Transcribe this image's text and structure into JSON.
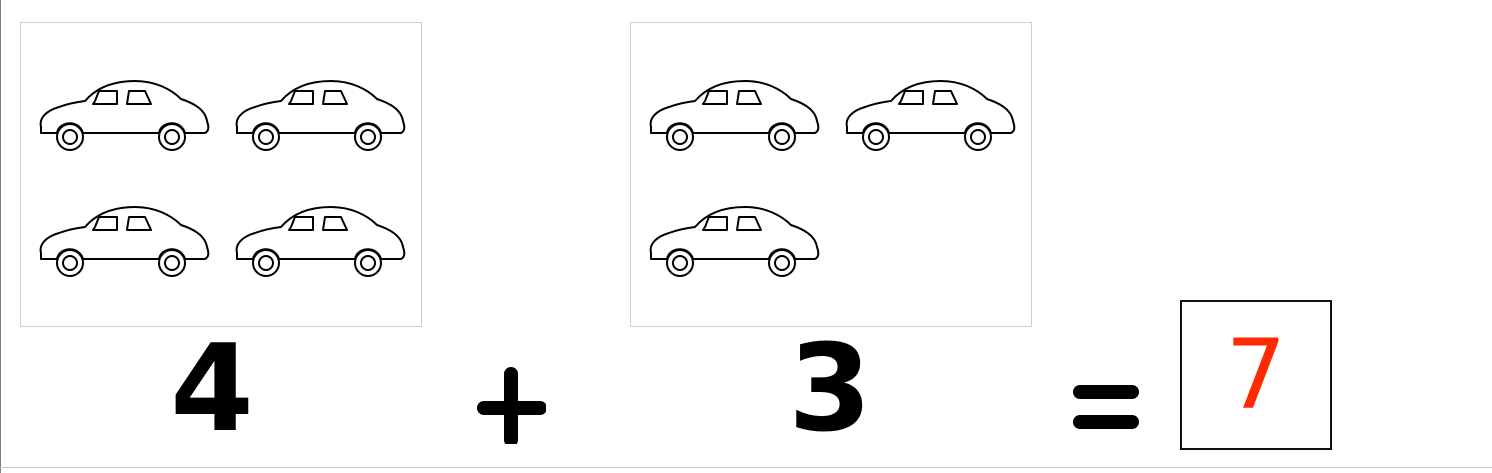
{
  "problem": {
    "addend_a": "4",
    "operator_plus": "+",
    "addend_b": "3",
    "operator_equals": "=",
    "answer": "7"
  },
  "groups": {
    "left_count": 4,
    "right_count": 3,
    "object_icon": "car-icon"
  },
  "colors": {
    "answer": "#ff2a00",
    "ink": "#000000",
    "box_border": "#cfcfcf"
  }
}
